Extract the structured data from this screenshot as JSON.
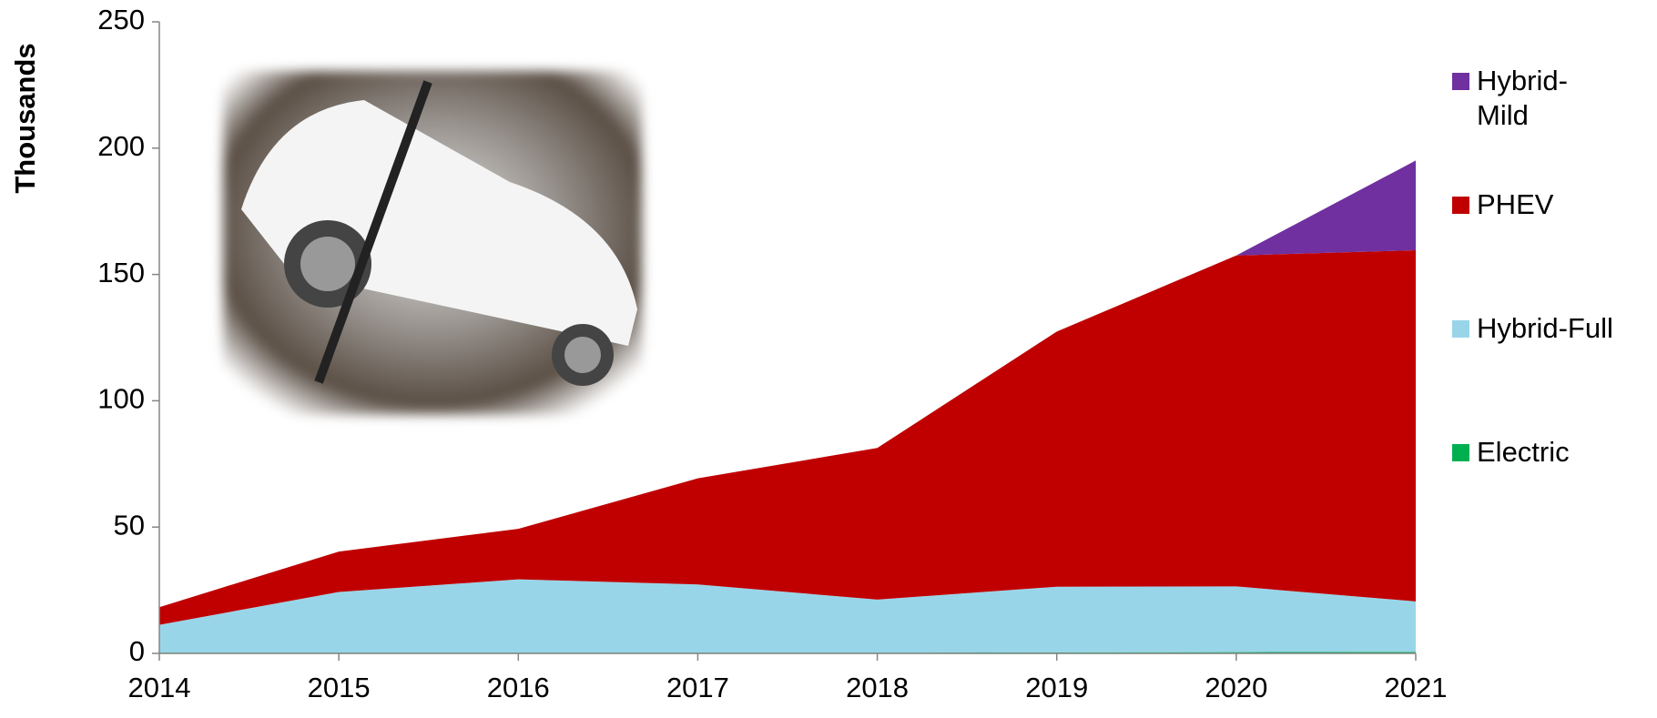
{
  "chart_data": {
    "type": "stacked-area",
    "y_label": "Thousands",
    "x": [
      2014,
      2015,
      2016,
      2017,
      2018,
      2019,
      2020,
      2021
    ],
    "xlim": [
      2014,
      2021
    ],
    "xticks": [
      2014,
      2015,
      2016,
      2017,
      2018,
      2019,
      2020,
      2021
    ],
    "ylim": [
      0,
      250
    ],
    "yticks": [
      0,
      50,
      100,
      150,
      200,
      250
    ],
    "series": [
      {
        "name": "Electric",
        "color": "#00b050",
        "values": [
          0.3,
          0.3,
          0.3,
          0.3,
          0.3,
          0.4,
          0.5,
          0.6
        ]
      },
      {
        "name": "Hybrid-Full",
        "color": "#99d5e9",
        "values": [
          11,
          24,
          29,
          27,
          21,
          26,
          26,
          20
        ]
      },
      {
        "name": "PHEV",
        "color": "#c00000",
        "values": [
          7,
          16,
          20,
          42,
          60,
          101,
          131,
          139
        ]
      },
      {
        "name": "Hybrid-Mild",
        "color": "#7030a0",
        "values": [
          0,
          0,
          0,
          0,
          0,
          0,
          0,
          35.5
        ]
      }
    ]
  }
}
